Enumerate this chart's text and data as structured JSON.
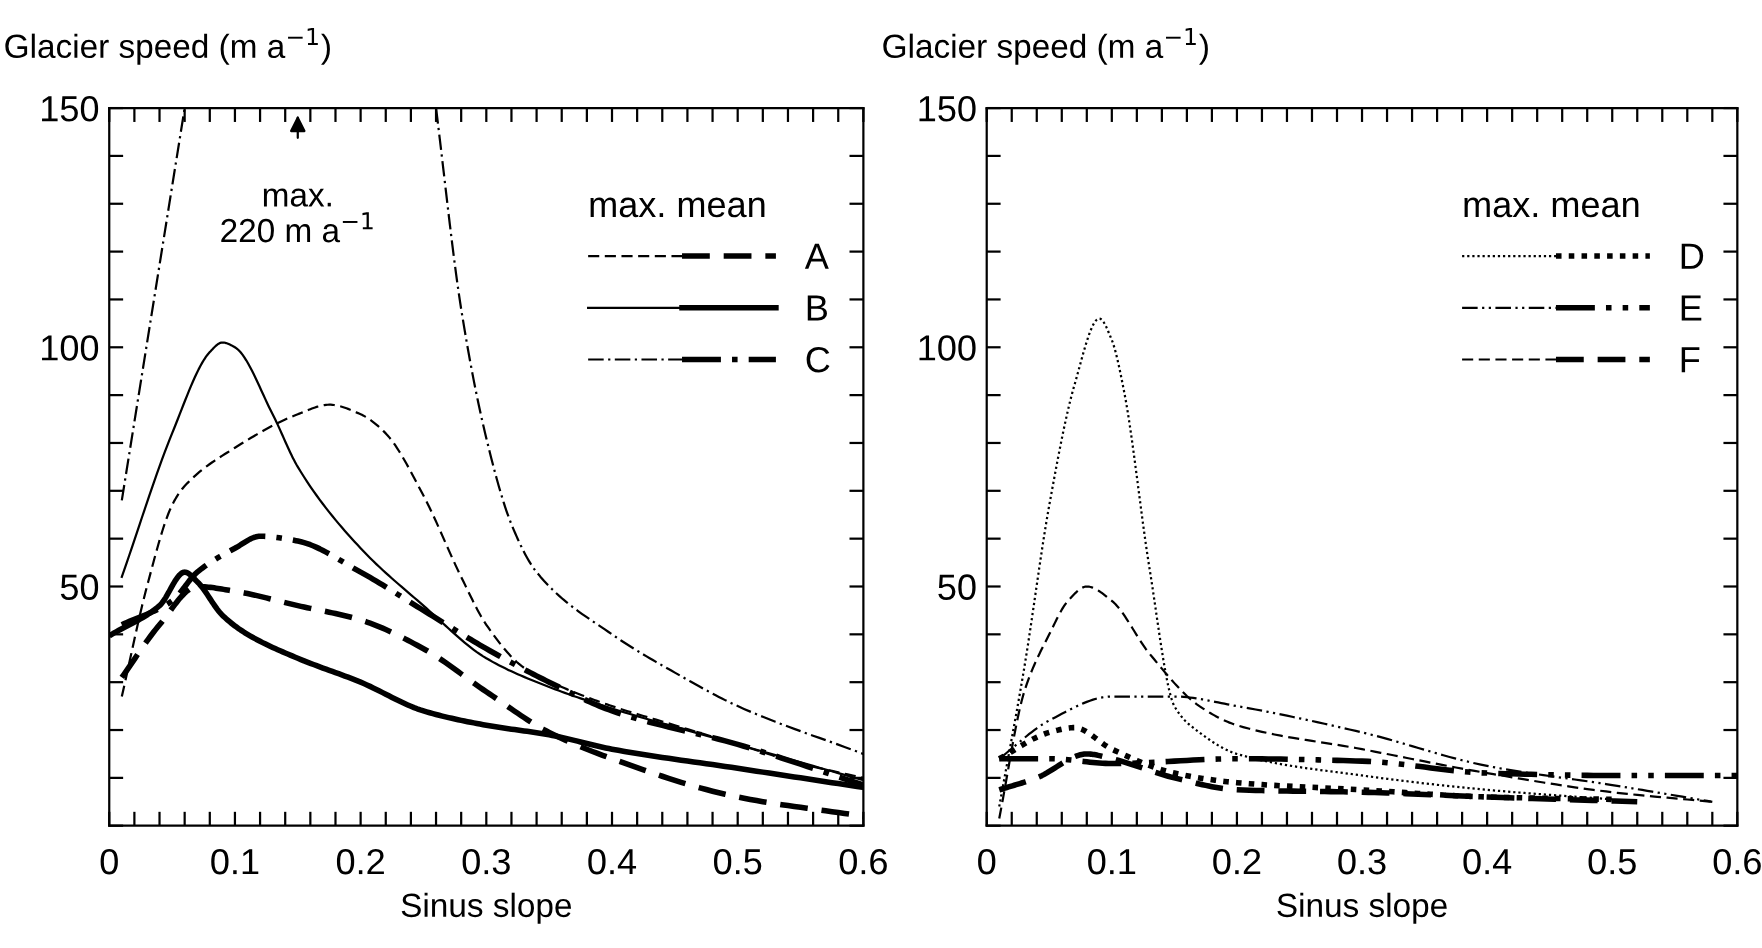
{
  "chart_data": [
    {
      "type": "line",
      "xlabel": "Sinus slope",
      "ylabel": "Glacier speed (m a$^{−1}$)",
      "legend_title": "max. mean",
      "legend": "top right",
      "grid": false,
      "xlim": [
        0,
        0.6
      ],
      "ylim": [
        0,
        150
      ],
      "xticks": [
        {
          "value": 0,
          "label": "0"
        },
        {
          "value": 0.02,
          "label": null
        },
        {
          "value": 0.04,
          "label": null
        },
        {
          "value": 0.06,
          "label": null
        },
        {
          "value": 0.08,
          "label": null
        },
        {
          "value": 0.1,
          "label": "0.1"
        },
        {
          "value": 0.12,
          "label": null
        },
        {
          "value": 0.14,
          "label": null
        },
        {
          "value": 0.16,
          "label": null
        },
        {
          "value": 0.18,
          "label": null
        },
        {
          "value": 0.2,
          "label": "0.2"
        },
        {
          "value": 0.22,
          "label": null
        },
        {
          "value": 0.24,
          "label": null
        },
        {
          "value": 0.26,
          "label": null
        },
        {
          "value": 0.28,
          "label": null
        },
        {
          "value": 0.3,
          "label": "0.3"
        },
        {
          "value": 0.32,
          "label": null
        },
        {
          "value": 0.34,
          "label": null
        },
        {
          "value": 0.36,
          "label": null
        },
        {
          "value": 0.38,
          "label": null
        },
        {
          "value": 0.4,
          "label": "0.4"
        },
        {
          "value": 0.42,
          "label": null
        },
        {
          "value": 0.44,
          "label": null
        },
        {
          "value": 0.46,
          "label": null
        },
        {
          "value": 0.48,
          "label": null
        },
        {
          "value": 0.5,
          "label": "0.5"
        },
        {
          "value": 0.52,
          "label": null
        },
        {
          "value": 0.54,
          "label": null
        },
        {
          "value": 0.56,
          "label": null
        },
        {
          "value": 0.58,
          "label": null
        },
        {
          "value": 0.6,
          "label": "0.6"
        }
      ],
      "yticks": [
        {
          "value": 0,
          "label": null
        },
        {
          "value": 10,
          "label": null
        },
        {
          "value": 20,
          "label": null
        },
        {
          "value": 30,
          "label": null
        },
        {
          "value": 40,
          "label": null
        },
        50,
        {
          "value": 60,
          "label": null
        },
        {
          "value": 70,
          "label": null
        },
        {
          "value": 80,
          "label": null
        },
        {
          "value": 90,
          "label": null
        },
        100,
        {
          "value": 110,
          "label": null
        },
        {
          "value": 120,
          "label": null
        },
        {
          "value": 130,
          "label": null
        },
        {
          "value": 140,
          "label": null
        },
        150
      ],
      "annotations": [
        "max.\n220 m a$^{−1}$"
      ],
      "series": [
        {
          "name": "A",
          "color": "#000000",
          "line_style": "dashed",
          "x": [
            0.01,
            0.03,
            0.05,
            0.06,
            0.1,
            0.15,
            0.175,
            0.2,
            0.22,
            0.25,
            0.28,
            0.3,
            0.33,
            0.36,
            0.4,
            0.45,
            0.5,
            0.55,
            0.6
          ],
          "values": [
            27,
            50,
            67,
            71,
            79,
            86,
            88,
            86,
            82,
            69,
            52,
            42,
            33,
            29,
            25,
            21,
            17,
            13,
            10
          ]
        },
        {
          "color": "#000000",
          "line_style": "dashed",
          "x": [
            0.01,
            0.04,
            0.07,
            0.1,
            0.15,
            0.2,
            0.25,
            0.3,
            0.35,
            0.4,
            0.5,
            0.6
          ],
          "values": [
            31,
            42,
            50,
            49,
            46,
            43,
            37,
            28,
            19.5,
            14,
            6,
            2
          ]
        },
        {
          "name": "B",
          "color": "#000000",
          "line_style": "solid",
          "x": [
            0.01,
            0.05,
            0.08,
            0.09,
            0.1,
            0.13,
            0.15,
            0.2,
            0.25,
            0.3,
            0.35,
            0.4,
            0.5,
            0.6
          ],
          "values": [
            52,
            82,
            99,
            101,
            100,
            86,
            75,
            58,
            46,
            35,
            29,
            24.5,
            17,
            9.5
          ]
        },
        {
          "color": "#000000",
          "line_style": "solid",
          "x": [
            0.002,
            0.04,
            0.06,
            0.07,
            0.09,
            0.11,
            0.15,
            0.2,
            0.25,
            0.3,
            0.35,
            0.4,
            0.5,
            0.6
          ],
          "values": [
            40,
            46,
            53,
            51,
            44,
            40,
            35,
            30,
            24,
            21,
            19,
            16,
            12,
            8
          ]
        },
        {
          "name": "C",
          "color": "#000000",
          "line_style": "dashdot",
          "x": [
            0.01,
            0.06,
            0.15,
            0.26,
            0.28,
            0.3,
            0.32,
            0.34,
            0.4,
            0.45,
            0.5,
            0.6
          ],
          "values": [
            68,
            150,
            null,
            150,
            108,
            81,
            63,
            53,
            40,
            32,
            25,
            15
          ]
        },
        {
          "color": "#000000",
          "line_style": "dashdot",
          "x": [
            0.01,
            0.05,
            0.07,
            0.1,
            0.12,
            0.15,
            0.2,
            0.25,
            0.3,
            0.35,
            0.4,
            0.5,
            0.6
          ],
          "values": [
            42,
            47,
            53,
            58,
            60.5,
            59.5,
            53,
            45,
            37,
            30,
            24,
            17,
            8.5
          ]
        }
      ]
    },
    {
      "type": "line",
      "xlabel": "Sinus slope",
      "ylabel": "Glacier speed (m a$^{−1}$)",
      "legend_title": "max. mean",
      "legend": "top right",
      "grid": false,
      "xlim": [
        0,
        0.6
      ],
      "ylim": [
        0,
        150
      ],
      "xticks": [
        {
          "value": 0,
          "label": "0"
        },
        {
          "value": 0.02,
          "label": null
        },
        {
          "value": 0.04,
          "label": null
        },
        {
          "value": 0.06,
          "label": null
        },
        {
          "value": 0.08,
          "label": null
        },
        {
          "value": 0.1,
          "label": "0.1"
        },
        {
          "value": 0.12,
          "label": null
        },
        {
          "value": 0.14,
          "label": null
        },
        {
          "value": 0.16,
          "label": null
        },
        {
          "value": 0.18,
          "label": null
        },
        {
          "value": 0.2,
          "label": "0.2"
        },
        {
          "value": 0.22,
          "label": null
        },
        {
          "value": 0.24,
          "label": null
        },
        {
          "value": 0.26,
          "label": null
        },
        {
          "value": 0.28,
          "label": null
        },
        {
          "value": 0.3,
          "label": "0.3"
        },
        {
          "value": 0.32,
          "label": null
        },
        {
          "value": 0.34,
          "label": null
        },
        {
          "value": 0.36,
          "label": null
        },
        {
          "value": 0.38,
          "label": null
        },
        {
          "value": 0.4,
          "label": "0.4"
        },
        {
          "value": 0.42,
          "label": null
        },
        {
          "value": 0.44,
          "label": null
        },
        {
          "value": 0.46,
          "label": null
        },
        {
          "value": 0.48,
          "label": null
        },
        {
          "value": 0.5,
          "label": "0.5"
        },
        {
          "value": 0.52,
          "label": null
        },
        {
          "value": 0.54,
          "label": null
        },
        {
          "value": 0.56,
          "label": null
        },
        {
          "value": 0.58,
          "label": null
        },
        {
          "value": 0.6,
          "label": "0.6"
        }
      ],
      "yticks": [
        {
          "value": 0,
          "label": null
        },
        {
          "value": 10,
          "label": null
        },
        {
          "value": 20,
          "label": null
        },
        {
          "value": 30,
          "label": null
        },
        {
          "value": 40,
          "label": null
        },
        50,
        {
          "value": 60,
          "label": null
        },
        {
          "value": 70,
          "label": null
        },
        {
          "value": 80,
          "label": null
        },
        {
          "value": 90,
          "label": null
        },
        100,
        {
          "value": 110,
          "label": null
        },
        {
          "value": 120,
          "label": null
        },
        {
          "value": 130,
          "label": null
        },
        {
          "value": 140,
          "label": null
        },
        150
      ],
      "series": [
        {
          "name": "D",
          "color": "#000000",
          "line_style": "dotted",
          "x": [
            0.01,
            0.03,
            0.05,
            0.07,
            0.09,
            0.1,
            0.11,
            0.13,
            0.15,
            0.17,
            0.2,
            0.3,
            0.4,
            0.5
          ],
          "values": [
            4,
            33,
            67,
            92,
            106,
            101.5,
            90.5,
            54,
            25,
            19.5,
            15,
            10.5,
            7.5,
            5.5
          ]
        },
        {
          "color": "#000000",
          "line_style": "dotted",
          "x": [
            0.01,
            0.05,
            0.07,
            0.1,
            0.15,
            0.2,
            0.3,
            0.4,
            0.5
          ],
          "values": [
            14,
            19.5,
            20.5,
            16,
            11,
            9,
            7.5,
            6,
            5.5
          ]
        },
        {
          "name": "E",
          "color": "#000000",
          "line_style": "dashdotdot",
          "x": [
            0.01,
            0.05,
            0.1,
            0.15,
            0.2,
            0.3,
            0.4,
            0.5,
            0.58
          ],
          "values": [
            14,
            22,
            27,
            27,
            25,
            19.5,
            12.5,
            8.5,
            5
          ]
        },
        {
          "color": "#000000",
          "line_style": "dashdotdot",
          "x": [
            0.01,
            0.05,
            0.1,
            0.2,
            0.3,
            0.4,
            0.5,
            0.6
          ],
          "values": [
            14,
            14,
            13,
            14,
            13.5,
            11,
            10.5,
            10.5
          ]
        },
        {
          "name": "F",
          "color": "#000000",
          "line_style": "dashed",
          "x": [
            0.01,
            0.03,
            0.05,
            0.065,
            0.08,
            0.1,
            0.13,
            0.17,
            0.2,
            0.3,
            0.4,
            0.5,
            0.58
          ],
          "values": [
            1.5,
            28,
            40,
            47,
            50,
            47,
            36,
            25,
            21,
            16,
            11,
            7,
            5
          ]
        },
        {
          "color": "#000000",
          "line_style": "dashed",
          "x": [
            0.01,
            0.04,
            0.08,
            0.1,
            0.15,
            0.2,
            0.3,
            0.4,
            0.52
          ],
          "values": [
            7.5,
            10,
            15,
            14,
            10,
            7.5,
            7,
            6,
            5
          ]
        }
      ]
    }
  ]
}
